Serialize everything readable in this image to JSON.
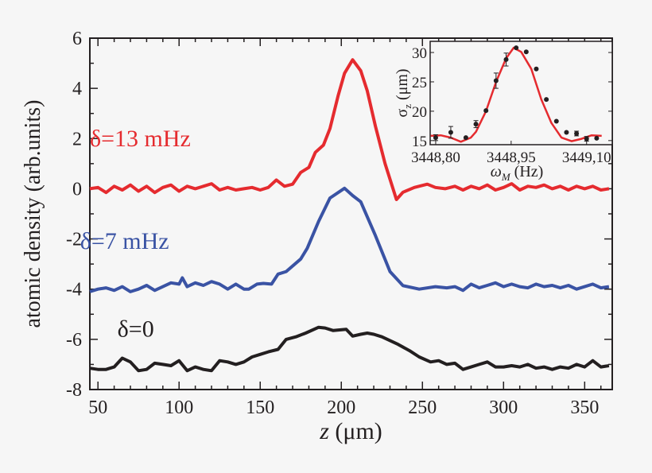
{
  "chart_data": [
    {
      "type": "line",
      "xlabel_italic": "z",
      "xlabel_unit": "(μm)",
      "ylabel": "atomic density (arb.units)",
      "xlim": [
        45,
        367
      ],
      "ylim": [
        -8,
        6
      ],
      "xticks": [
        50,
        100,
        150,
        200,
        250,
        300,
        350
      ],
      "yticks": [
        6,
        4,
        2,
        0,
        -2,
        -4,
        -6,
        -8
      ],
      "grid": false,
      "series": [
        {
          "name": "δ=13 mHz",
          "color": "#e52b2f",
          "x": [
            45,
            50,
            55,
            60,
            65,
            70,
            75,
            80,
            85,
            90,
            95,
            100,
            105,
            110,
            115,
            120,
            125,
            130,
            135,
            140,
            145,
            150,
            155,
            160,
            165,
            170,
            175,
            180,
            184,
            189,
            193,
            198,
            202,
            207,
            212,
            216,
            221,
            227,
            234,
            238,
            245,
            253,
            258,
            264,
            270,
            275,
            280,
            285,
            290,
            295,
            300,
            305,
            310,
            315,
            320,
            325,
            330,
            335,
            340,
            345,
            350,
            355,
            360,
            365
          ],
          "y": [
            0.0,
            0.05,
            -0.15,
            0.1,
            -0.05,
            0.15,
            -0.1,
            0.1,
            -0.15,
            0.05,
            0.15,
            -0.1,
            0.1,
            0.0,
            0.1,
            0.2,
            -0.05,
            0.05,
            -0.05,
            0.0,
            0.05,
            -0.05,
            0.05,
            0.35,
            0.1,
            0.18,
            0.65,
            0.85,
            1.45,
            1.74,
            2.4,
            3.7,
            4.6,
            5.14,
            4.7,
            3.9,
            2.5,
            1.0,
            -0.43,
            -0.14,
            0.05,
            0.18,
            0.05,
            0.0,
            0.1,
            -0.05,
            0.1,
            0.0,
            0.15,
            -0.05,
            0.05,
            0.2,
            -0.05,
            0.1,
            0.05,
            0.15,
            0.0,
            0.1,
            -0.05,
            0.1,
            0.0,
            0.1,
            -0.05,
            0.0
          ]
        },
        {
          "name": "δ=7 mHz",
          "color": "#3a53a4",
          "x": [
            45,
            50,
            55,
            60,
            65,
            70,
            75,
            80,
            85,
            90,
            95,
            100,
            102,
            105,
            110,
            115,
            120,
            125,
            130,
            135,
            140,
            143,
            148,
            152,
            157,
            161,
            166,
            175,
            179,
            186,
            193,
            202,
            207,
            212,
            221,
            230,
            238,
            248,
            258,
            265,
            270,
            275,
            280,
            285,
            290,
            295,
            300,
            305,
            310,
            315,
            320,
            325,
            330,
            335,
            340,
            345,
            350,
            355,
            360,
            365
          ],
          "y": [
            -4.1,
            -4.0,
            -3.95,
            -4.05,
            -3.9,
            -4.1,
            -4.0,
            -3.85,
            -4.05,
            -3.9,
            -3.75,
            -3.8,
            -3.55,
            -3.9,
            -3.75,
            -3.85,
            -3.7,
            -3.8,
            -4.0,
            -3.8,
            -4.0,
            -4.0,
            -3.8,
            -3.77,
            -3.8,
            -3.4,
            -3.3,
            -2.8,
            -2.37,
            -1.3,
            -0.37,
            0.02,
            -0.27,
            -0.52,
            -1.86,
            -3.3,
            -3.86,
            -4.0,
            -3.9,
            -3.95,
            -3.9,
            -4.05,
            -3.8,
            -3.95,
            -3.85,
            -3.75,
            -3.9,
            -3.8,
            -3.9,
            -3.95,
            -3.8,
            -3.9,
            -3.85,
            -3.95,
            -3.85,
            -4.0,
            -3.9,
            -3.8,
            -3.95,
            -3.9
          ]
        },
        {
          "name": "δ=0",
          "color": "#231f20",
          "x": [
            45,
            50,
            55,
            60,
            65,
            70,
            75,
            80,
            85,
            90,
            95,
            100,
            105,
            110,
            115,
            120,
            125,
            130,
            135,
            140,
            145,
            150,
            155,
            161,
            166,
            172,
            178,
            186,
            190,
            195,
            203,
            207,
            212,
            216,
            220,
            225,
            235,
            242,
            248,
            255,
            260,
            265,
            270,
            275,
            280,
            285,
            290,
            295,
            300,
            305,
            310,
            315,
            320,
            325,
            330,
            335,
            340,
            345,
            350,
            355,
            360,
            365
          ],
          "y": [
            -7.15,
            -7.2,
            -7.2,
            -7.1,
            -6.75,
            -6.9,
            -7.25,
            -7.2,
            -6.95,
            -7.0,
            -7.05,
            -6.85,
            -7.25,
            -7.1,
            -7.2,
            -7.25,
            -6.85,
            -6.9,
            -7.0,
            -6.9,
            -6.7,
            -6.6,
            -6.5,
            -6.4,
            -6.0,
            -5.9,
            -5.75,
            -5.52,
            -5.55,
            -5.65,
            -5.6,
            -5.87,
            -5.8,
            -5.75,
            -5.8,
            -5.9,
            -6.2,
            -6.45,
            -6.7,
            -6.9,
            -6.85,
            -7.0,
            -6.95,
            -7.2,
            -7.1,
            -7.0,
            -6.9,
            -7.1,
            -7.1,
            -7.05,
            -7.1,
            -7.0,
            -7.15,
            -7.1,
            -7.2,
            -7.1,
            -7.15,
            -7.0,
            -7.1,
            -6.85,
            -7.1,
            -7.05
          ]
        }
      ],
      "annotations": [
        {
          "text": "δ=13 mHz",
          "color": "#e52b2f",
          "x": 45,
          "y": 1.7
        },
        {
          "text": "δ=7 mHz",
          "color": "#3a53a4",
          "x": 39,
          "y": -2.4
        },
        {
          "text": "δ=0",
          "color": "#231f20",
          "x": 62,
          "y": -5.9
        }
      ]
    },
    {
      "type": "scatter",
      "xlabel_italic": "ω",
      "xlabel_sub": "M",
      "xlabel_unit": "(Hz)",
      "ylabel_symbol": "σ",
      "ylabel_sub": "z",
      "ylabel_unit": "(μm)",
      "xlim": [
        3448.789,
        3449.151
      ],
      "ylim": [
        14.3,
        31.9
      ],
      "xticks": [
        3448.8,
        3448.95,
        3449.1
      ],
      "xtick_labels": [
        "3448,80",
        "3448,95",
        "3449,10"
      ],
      "yticks": [
        15,
        20,
        25,
        30
      ],
      "points": {
        "x": [
          3448.8,
          3448.83,
          3448.86,
          3448.88,
          3448.9,
          3448.92,
          3448.94,
          3448.96,
          3448.98,
          3449.0,
          3449.02,
          3449.04,
          3449.06,
          3449.08,
          3449.1,
          3449.12
        ],
        "y": [
          15.5,
          16.4,
          15.5,
          17.8,
          20.1,
          25.2,
          28.8,
          30.8,
          30.1,
          27.2,
          22.0,
          18.3,
          16.4,
          16.2,
          15.3,
          15.4
        ],
        "err": [
          0.5,
          1.0,
          0.2,
          0.6,
          0.3,
          1.3,
          1.1,
          0.2,
          0.3,
          0.2,
          0.2,
          0.2,
          0.2,
          0.4,
          0.4,
          0.3
        ],
        "color": "#231f20"
      },
      "fit": {
        "color": "#e52b2f",
        "x": [
          3448.79,
          3448.81,
          3448.83,
          3448.85,
          3448.87,
          3448.88,
          3448.9,
          3448.92,
          3448.94,
          3448.955,
          3448.97,
          3448.99,
          3449.01,
          3449.03,
          3449.05,
          3449.07,
          3449.09,
          3449.11,
          3449.13
        ],
        "y": [
          15.8,
          15.9,
          15.5,
          14.8,
          15.5,
          16.5,
          20.0,
          25.0,
          29.0,
          30.8,
          30.1,
          27.2,
          22.0,
          18.0,
          15.5,
          14.9,
          15.3,
          15.9,
          15.8
        ]
      }
    }
  ]
}
